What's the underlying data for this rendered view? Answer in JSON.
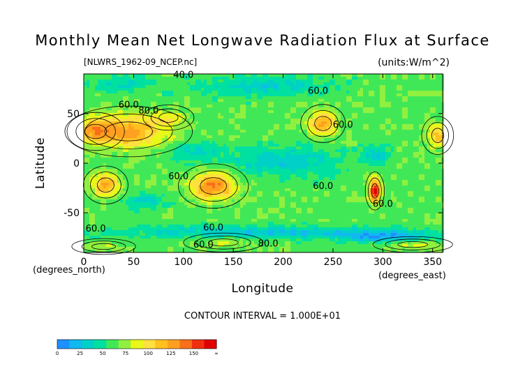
{
  "chart_data": {
    "type": "heatmap",
    "title": "Monthly Mean Net Longwave Radiation Flux at Surface",
    "source_label": "[NLWRS_1962-09_NCEP.nc]",
    "units_label": "(units:W/m^2)",
    "xlabel": "Longitude",
    "ylabel": "Latitude",
    "x_unit_label": "(degrees_east)",
    "y_unit_label": "(degrees_north)",
    "contour_interval_label": "CONTOUR INTERVAL = 1.000E+01",
    "xlim": [
      0,
      360
    ],
    "ylim": [
      -90,
      90
    ],
    "x_ticks": [
      "0",
      "50",
      "100",
      "150",
      "200",
      "250",
      "300",
      "350"
    ],
    "x_tick_values": [
      0,
      50,
      100,
      150,
      200,
      250,
      300,
      350
    ],
    "y_ticks": [
      "50",
      "0",
      "-50"
    ],
    "y_tick_values": [
      50,
      0,
      -50
    ],
    "colorbar": {
      "labels": [
        "0",
        "25",
        "50",
        "75",
        "100",
        "125",
        "150",
        "∞"
      ],
      "levels": [
        0,
        12.5,
        25,
        37.5,
        50,
        62.5,
        75,
        87.5,
        100,
        112.5,
        125,
        137.5,
        150
      ],
      "colors": [
        "#1e90ff",
        "#12b8f0",
        "#00d0c8",
        "#00e0a0",
        "#40e858",
        "#90f040",
        "#e8f818",
        "#ffe040",
        "#ffc020",
        "#ffa020",
        "#f87018",
        "#f03010",
        "#e00000"
      ]
    },
    "contour_labels": [
      {
        "text": "40.0",
        "lon": 100,
        "lat": 86
      },
      {
        "text": "60.0",
        "lon": 235,
        "lat": 70
      },
      {
        "text": "60.0",
        "lon": 45,
        "lat": 56
      },
      {
        "text": "80.0",
        "lon": 65,
        "lat": 50
      },
      {
        "text": "60.0",
        "lon": 260,
        "lat": 36
      },
      {
        "text": "60.0",
        "lon": 95,
        "lat": -16
      },
      {
        "text": "60.0",
        "lon": 240,
        "lat": -26
      },
      {
        "text": "60.0",
        "lon": 12,
        "lat": -69
      },
      {
        "text": "60.0",
        "lon": 130,
        "lat": -68
      },
      {
        "text": "60.0",
        "lon": 120,
        "lat": -85
      },
      {
        "text": "80.0",
        "lon": 185,
        "lat": -84
      },
      {
        "text": "60.0",
        "lon": 300,
        "lat": -44
      }
    ],
    "hotspots": [
      {
        "lon": 45,
        "lat": 32,
        "value": 115,
        "rx": 40,
        "ry": 16
      },
      {
        "lon": 12,
        "lat": 32,
        "value": 100,
        "rx": 18,
        "ry": 12
      },
      {
        "lon": 240,
        "lat": 40,
        "value": 115,
        "rx": 14,
        "ry": 12
      },
      {
        "lon": 355,
        "lat": 28,
        "value": 105,
        "rx": 10,
        "ry": 12
      },
      {
        "lon": 22,
        "lat": -22,
        "value": 115,
        "rx": 14,
        "ry": 12
      },
      {
        "lon": 130,
        "lat": -23,
        "value": 125,
        "rx": 22,
        "ry": 14
      },
      {
        "lon": 292,
        "lat": -28,
        "value": 150,
        "rx": 6,
        "ry": 12
      },
      {
        "lon": 85,
        "lat": 46,
        "value": 80,
        "rx": 16,
        "ry": 8
      },
      {
        "lon": 140,
        "lat": -80,
        "value": 75,
        "rx": 25,
        "ry": 6
      },
      {
        "lon": 330,
        "lat": -82,
        "value": 80,
        "rx": 25,
        "ry": 5
      },
      {
        "lon": 20,
        "lat": -84,
        "value": 75,
        "rx": 20,
        "ry": 5
      }
    ],
    "coldspots": [
      {
        "lon": 200,
        "lat": 2,
        "value": 28,
        "rx": 55,
        "ry": 14
      },
      {
        "lon": 110,
        "lat": 12,
        "value": 35,
        "rx": 25,
        "ry": 10
      },
      {
        "lon": 60,
        "lat": -38,
        "value": 35,
        "rx": 20,
        "ry": 8
      },
      {
        "lon": 180,
        "lat": 78,
        "value": 30,
        "rx": 60,
        "ry": 10
      },
      {
        "lon": 40,
        "lat": 80,
        "value": 35,
        "rx": 30,
        "ry": 8
      },
      {
        "lon": 200,
        "lat": -70,
        "value": 25,
        "rx": 160,
        "ry": 6
      },
      {
        "lon": 300,
        "lat": -75,
        "value": 20,
        "rx": 40,
        "ry": 5
      },
      {
        "lon": 295,
        "lat": 8,
        "value": 25,
        "rx": 12,
        "ry": 8
      }
    ],
    "base_value": 58
  }
}
